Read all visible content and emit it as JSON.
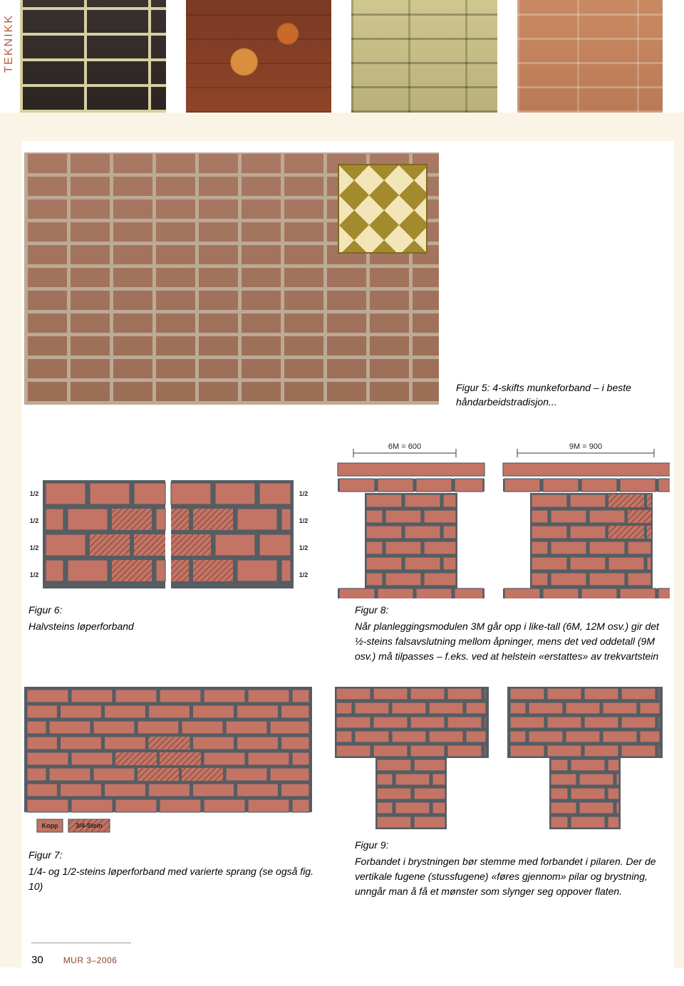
{
  "sidebar": {
    "label": "TEKNIKK"
  },
  "fig5": {
    "title": "Figur 5:",
    "line": "4-skifts munkeforband – i beste håndarbeidstradisjon..."
  },
  "fig6": {
    "title": "Figur 6:",
    "line": "Halvsteins løperforband",
    "row_label": "1/2",
    "colors": {
      "brick": "#c37465",
      "mortar": "#555d63",
      "hatched": "#b56a5b"
    }
  },
  "fig7": {
    "title": "Figur 7:",
    "line": "1/4- og 1/2-steins løperforband med varierte sprang (se også fig. 10)",
    "legend": {
      "kopp": "Kopp",
      "tq": "3/4-Stein"
    }
  },
  "fig8": {
    "title": "Figur 8:",
    "line": "Når planleggingsmodulen 3M går opp i like-tall (6M, 12M osv.) gir det ½-steins falsavslutning mellom åpninger, mens det ved oddetall (9M osv.) må tilpasses – f.eks. ved at helstein «erstattes» av trekvartstein",
    "dims": {
      "left": "6M = 600",
      "right": "9M = 900"
    }
  },
  "fig9": {
    "title": "Figur 9:",
    "line": "Forbandet i brystningen bør stemme med forbandet i pilaren. Der de vertikale fugene (stussfugene) «føres gjennom» pilar og brystning, unngår man å få et mønster som slynger seg oppover flaten."
  },
  "footer": {
    "page": "30",
    "mag": "MUR 3–2006"
  },
  "palette": {
    "sidebar": "#b85c3e",
    "beige": "#faf4e6",
    "brick": "#c37465",
    "mortar": "#555d63"
  }
}
